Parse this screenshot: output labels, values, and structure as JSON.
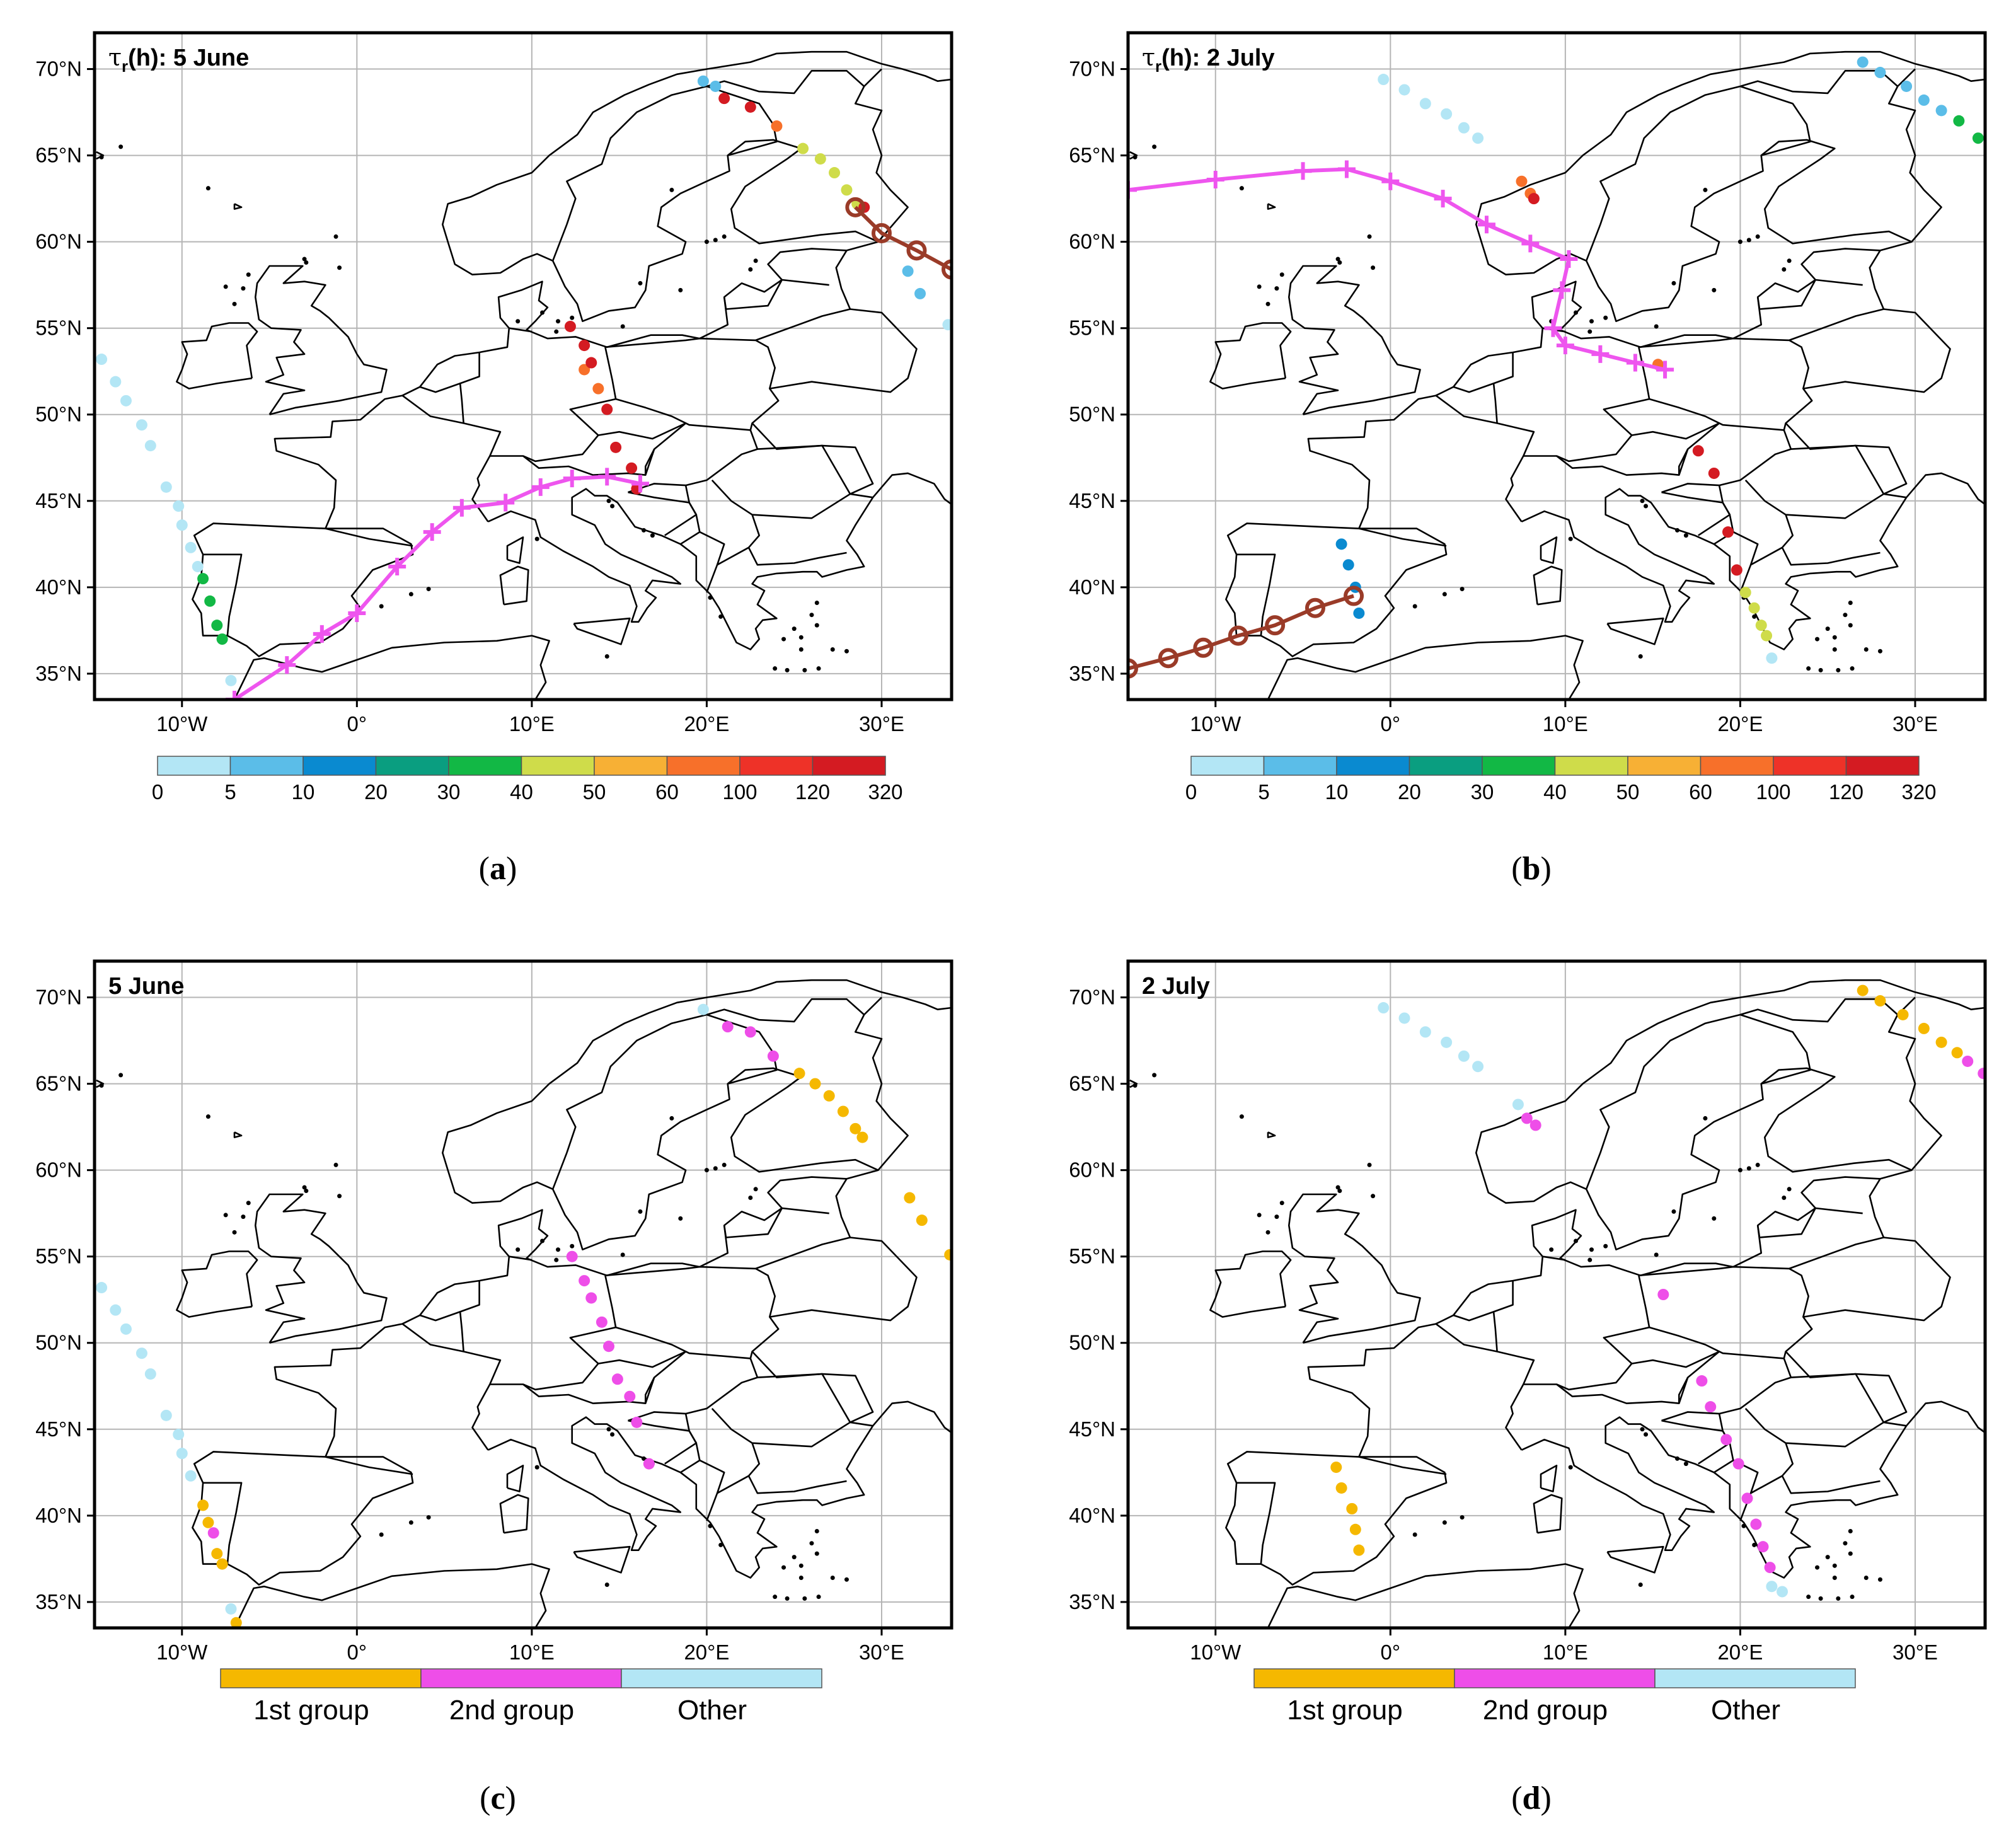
{
  "figure": {
    "lat_ticks": [
      "70°N",
      "65°N",
      "60°N",
      "55°N",
      "50°N",
      "45°N",
      "40°N",
      "35°N"
    ],
    "lon_ticks": [
      "10°W",
      "0°",
      "10°E",
      "20°E",
      "30°E"
    ],
    "colorbar_levels": [
      "0",
      "5",
      "10",
      "20",
      "30",
      "40",
      "50",
      "60",
      "100",
      "120",
      "320"
    ],
    "colorbar_colors": [
      "#b3e6f5",
      "#5bbde8",
      "#0a8ad0",
      "#0a9e80",
      "#12b845",
      "#cfdc4a",
      "#f7b035",
      "#f7702a",
      "#ee3228",
      "#d41b22"
    ],
    "group_labels": [
      "1st group",
      "2nd group",
      "Other"
    ],
    "group_colors": {
      "first": "#f5b800",
      "second": "#ee4ee8",
      "other": "#b3e6f5"
    },
    "traj_colors": {
      "magenta": "#ee55ee",
      "brown": "#9a3b28"
    }
  },
  "panels": [
    {
      "id": "a",
      "title_prefix": "τ",
      "title_sub": "r",
      "title_suffix": "(h): 5 June",
      "caption": "(a)",
      "legend": "colorbar"
    },
    {
      "id": "b",
      "title_prefix": "τ",
      "title_sub": "r",
      "title_suffix": "(h): 2 July",
      "caption": "(b)",
      "legend": "colorbar"
    },
    {
      "id": "c",
      "title_prefix": "",
      "title_sub": "",
      "title_suffix": "5 June",
      "caption": "(c)",
      "legend": "groups"
    },
    {
      "id": "d",
      "title_prefix": "",
      "title_sub": "",
      "title_suffix": "2 July",
      "caption": "(d)",
      "legend": "groups"
    }
  ],
  "chart_data": {
    "type": "map",
    "projection": "lon-lat, 15°W–34°E, 33.5°N–72°N",
    "description_units": "longitude (deg E), latitude (deg N)",
    "panels": {
      "a": {
        "trajectories": [
          {
            "name": "magenta",
            "color_key": "magenta",
            "marker": "plus",
            "points": [
              [
                -7,
                33.5
              ],
              [
                -4,
                35.5
              ],
              [
                -2,
                37.3
              ],
              [
                0,
                38.5
              ],
              [
                2.3,
                41.2
              ],
              [
                4.3,
                43.2
              ],
              [
                6,
                44.6
              ],
              [
                8.5,
                44.9
              ],
              [
                10.5,
                45.8
              ],
              [
                12.3,
                46.3
              ],
              [
                14.3,
                46.4
              ],
              [
                16.2,
                46.0
              ]
            ]
          },
          {
            "name": "brown",
            "color_key": "brown",
            "marker": "circle",
            "points": [
              [
                28.5,
                62
              ],
              [
                30,
                60.5
              ],
              [
                32,
                59.5
              ],
              [
                34,
                58.4
              ]
            ]
          }
        ],
        "scatter": [
          {
            "level": 0,
            "points": [
              [
                -14.6,
                53.2
              ],
              [
                -13.8,
                51.9
              ],
              [
                -13.2,
                50.8
              ],
              [
                -12.3,
                49.4
              ],
              [
                -11.8,
                48.2
              ],
              [
                -10.9,
                45.8
              ],
              [
                -10.2,
                44.7
              ],
              [
                -10,
                43.6
              ],
              [
                -9.5,
                42.3
              ],
              [
                -9.1,
                41.2
              ],
              [
                -7.2,
                34.6
              ],
              [
                33.8,
                55.2
              ]
            ]
          },
          {
            "level": 1,
            "points": [
              [
                19.8,
                69.3
              ],
              [
                20.5,
                69.0
              ],
              [
                31.5,
                58.3
              ],
              [
                32.2,
                57
              ]
            ]
          },
          {
            "level": 4,
            "points": [
              [
                -8.8,
                40.5
              ],
              [
                -8.4,
                39.2
              ],
              [
                -8.0,
                37.8
              ],
              [
                -7.7,
                37.0
              ]
            ]
          },
          {
            "level": 5,
            "points": [
              [
                25.5,
                65.4
              ],
              [
                26.5,
                64.8
              ],
              [
                27.3,
                64.0
              ],
              [
                28.0,
                63.0
              ],
              [
                28.6,
                62.2
              ]
            ]
          },
          {
            "level": 7,
            "points": [
              [
                13.0,
                52.6
              ],
              [
                13.8,
                51.5
              ],
              [
                24.0,
                66.7
              ]
            ]
          },
          {
            "level": 9,
            "points": [
              [
                21.0,
                68.3
              ],
              [
                22.5,
                67.8
              ],
              [
                12.2,
                55.1
              ],
              [
                13.0,
                54.0
              ],
              [
                13.4,
                53.0
              ],
              [
                14.3,
                50.3
              ],
              [
                14.8,
                48.1
              ],
              [
                15.7,
                46.9
              ],
              [
                16.0,
                45.7
              ],
              [
                29.0,
                62.0
              ]
            ]
          }
        ]
      },
      "b": {
        "trajectories": [
          {
            "name": "magenta",
            "color_key": "magenta",
            "marker": "plus",
            "points": [
              [
                -15,
                63.0
              ],
              [
                -10,
                63.6
              ],
              [
                -5,
                64.1
              ],
              [
                -2.5,
                64.2
              ],
              [
                0,
                63.5
              ],
              [
                3,
                62.5
              ],
              [
                5.5,
                61.0
              ],
              [
                8,
                59.9
              ],
              [
                10.2,
                59.0
              ],
              [
                9.8,
                57.2
              ],
              [
                9.3,
                55.0
              ],
              [
                10.0,
                54.0
              ],
              [
                12.0,
                53.5
              ],
              [
                14.0,
                53.0
              ],
              [
                15.7,
                52.6
              ]
            ]
          },
          {
            "name": "brown",
            "color_key": "brown",
            "marker": "circle",
            "points": [
              [
                -15,
                35.3
              ],
              [
                -12.7,
                35.9
              ],
              [
                -10.7,
                36.5
              ],
              [
                -8.7,
                37.2
              ],
              [
                -6.6,
                37.8
              ],
              [
                -4.3,
                38.8
              ],
              [
                -2.1,
                39.5
              ]
            ]
          }
        ],
        "scatter": [
          {
            "level": 0,
            "points": [
              [
                -0.4,
                69.4
              ],
              [
                0.8,
                68.8
              ],
              [
                2.0,
                68.0
              ],
              [
                3.2,
                67.4
              ],
              [
                4.2,
                66.6
              ],
              [
                5.0,
                66.0
              ],
              [
                21.8,
                35.9
              ]
            ]
          },
          {
            "level": 1,
            "points": [
              [
                27.0,
                70.4
              ],
              [
                28.0,
                69.8
              ],
              [
                29.5,
                69.0
              ],
              [
                30.5,
                68.2
              ],
              [
                31.5,
                67.6
              ]
            ]
          },
          {
            "level": 2,
            "points": [
              [
                -2.8,
                42.5
              ],
              [
                -2.4,
                41.3
              ],
              [
                -2.0,
                40.0
              ],
              [
                -1.8,
                38.5
              ]
            ]
          },
          {
            "level": 4,
            "points": [
              [
                32.5,
                67.0
              ],
              [
                33.6,
                66.0
              ]
            ]
          },
          {
            "level": 7,
            "points": [
              [
                7.5,
                63.5
              ],
              [
                8.0,
                62.8
              ],
              [
                15.3,
                52.9
              ]
            ]
          },
          {
            "level": 9,
            "points": [
              [
                8.2,
                62.5
              ],
              [
                17.6,
                47.9
              ],
              [
                18.5,
                46.6
              ],
              [
                19.3,
                43.2
              ],
              [
                19.8,
                41.0
              ]
            ]
          },
          {
            "level": 5,
            "points": [
              [
                20.3,
                39.7
              ],
              [
                20.8,
                38.8
              ],
              [
                21.2,
                37.8
              ],
              [
                21.5,
                37.2
              ]
            ]
          }
        ]
      },
      "c": {
        "scatter": [
          {
            "group": "other",
            "points": [
              [
                -14.6,
                53.2
              ],
              [
                -13.8,
                51.9
              ],
              [
                -13.2,
                50.8
              ],
              [
                -12.3,
                49.4
              ],
              [
                -11.8,
                48.2
              ],
              [
                -10.9,
                45.8
              ],
              [
                -10.2,
                44.7
              ],
              [
                -10,
                43.6
              ],
              [
                -9.5,
                42.3
              ],
              [
                -7.2,
                34.6
              ],
              [
                19.8,
                69.3
              ]
            ]
          },
          {
            "group": "first",
            "points": [
              [
                -8.8,
                40.6
              ],
              [
                -8.5,
                39.6
              ],
              [
                -8.0,
                37.8
              ],
              [
                -7.7,
                37.2
              ],
              [
                -6.9,
                33.8
              ],
              [
                25.3,
                65.6
              ],
              [
                26.2,
                65.0
              ],
              [
                27.0,
                64.3
              ],
              [
                27.8,
                63.4
              ],
              [
                28.5,
                62.4
              ],
              [
                28.9,
                61.9
              ],
              [
                31.6,
                58.4
              ],
              [
                32.3,
                57.1
              ],
              [
                33.9,
                55.1
              ]
            ]
          },
          {
            "group": "second",
            "points": [
              [
                -8.2,
                39.0
              ],
              [
                21.2,
                68.3
              ],
              [
                22.5,
                68.0
              ],
              [
                23.8,
                66.6
              ],
              [
                12.3,
                55.0
              ],
              [
                13.0,
                53.6
              ],
              [
                13.4,
                52.6
              ],
              [
                14.0,
                51.2
              ],
              [
                14.4,
                49.8
              ],
              [
                14.9,
                47.9
              ],
              [
                15.6,
                46.9
              ],
              [
                16.0,
                45.4
              ],
              [
                16.7,
                43.0
              ]
            ]
          }
        ]
      },
      "d": {
        "scatter": [
          {
            "group": "other",
            "points": [
              [
                -0.4,
                69.4
              ],
              [
                0.8,
                68.8
              ],
              [
                2.0,
                68.0
              ],
              [
                3.2,
                67.4
              ],
              [
                4.2,
                66.6
              ],
              [
                5.0,
                66.0
              ],
              [
                7.3,
                63.8
              ],
              [
                21.8,
                35.9
              ],
              [
                22.4,
                35.6
              ]
            ]
          },
          {
            "group": "first",
            "points": [
              [
                27.0,
                70.4
              ],
              [
                28.0,
                69.8
              ],
              [
                29.3,
                69.0
              ],
              [
                30.5,
                68.2
              ],
              [
                31.5,
                67.4
              ],
              [
                32.4,
                66.8
              ],
              [
                -3.1,
                42.8
              ],
              [
                -2.8,
                41.6
              ],
              [
                -2.2,
                40.4
              ],
              [
                -2.0,
                39.2
              ],
              [
                -1.8,
                38.0
              ]
            ]
          },
          {
            "group": "second",
            "points": [
              [
                33.0,
                66.3
              ],
              [
                33.9,
                65.6
              ],
              [
                7.8,
                63.0
              ],
              [
                8.3,
                62.6
              ],
              [
                15.6,
                52.8
              ],
              [
                17.8,
                47.8
              ],
              [
                18.3,
                46.3
              ],
              [
                19.2,
                44.4
              ],
              [
                19.9,
                43.0
              ],
              [
                20.4,
                41.0
              ],
              [
                20.9,
                39.5
              ],
              [
                21.3,
                38.2
              ],
              [
                21.7,
                37.0
              ]
            ]
          }
        ]
      }
    }
  }
}
